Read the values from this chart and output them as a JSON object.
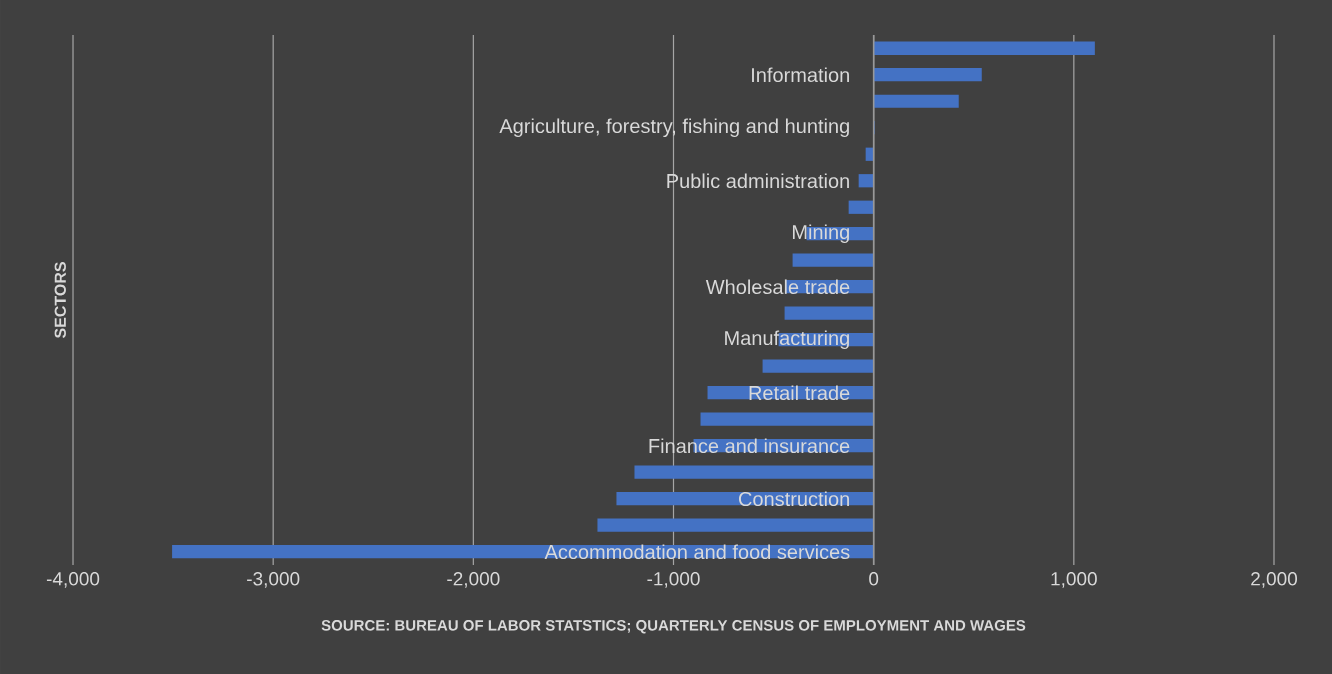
{
  "chart_data": {
    "type": "bar",
    "orientation": "horizontal",
    "categories": [
      null,
      "Information",
      null,
      "Agriculture, forestry, fishing and hunting",
      null,
      "Public administration",
      null,
      "Mining",
      null,
      "Wholesale trade",
      null,
      "Manufacturing",
      null,
      "Retail trade",
      null,
      "Finance and insurance",
      null,
      "Construction",
      null,
      "Accommodation and food services"
    ],
    "values": [
      1105,
      540,
      425,
      5,
      -40,
      -75,
      -125,
      -335,
      -405,
      -440,
      -445,
      -475,
      -555,
      -830,
      -865,
      -900,
      -1195,
      -1285,
      -1380,
      -3505
    ],
    "color": "#4472c4",
    "xlim": [
      -4000,
      2000
    ],
    "xticks": [
      {
        "value": -4000,
        "label": "-4,000"
      },
      {
        "value": -3000,
        "label": "-3,000"
      },
      {
        "value": -2000,
        "label": "-2,000"
      },
      {
        "value": -1000,
        "label": "-1,000"
      },
      0,
      {
        "value": 1000,
        "label": "1,000"
      },
      {
        "value": 2000,
        "label": "2,000"
      }
    ],
    "grid": "x",
    "ylabel": "SECTORS",
    "annotations": [
      "SOURCE: BUREAU OF LABOR STATSTICS; QUARTERLY CENSUS OF EMPLOYMENT AND WAGES"
    ]
  }
}
